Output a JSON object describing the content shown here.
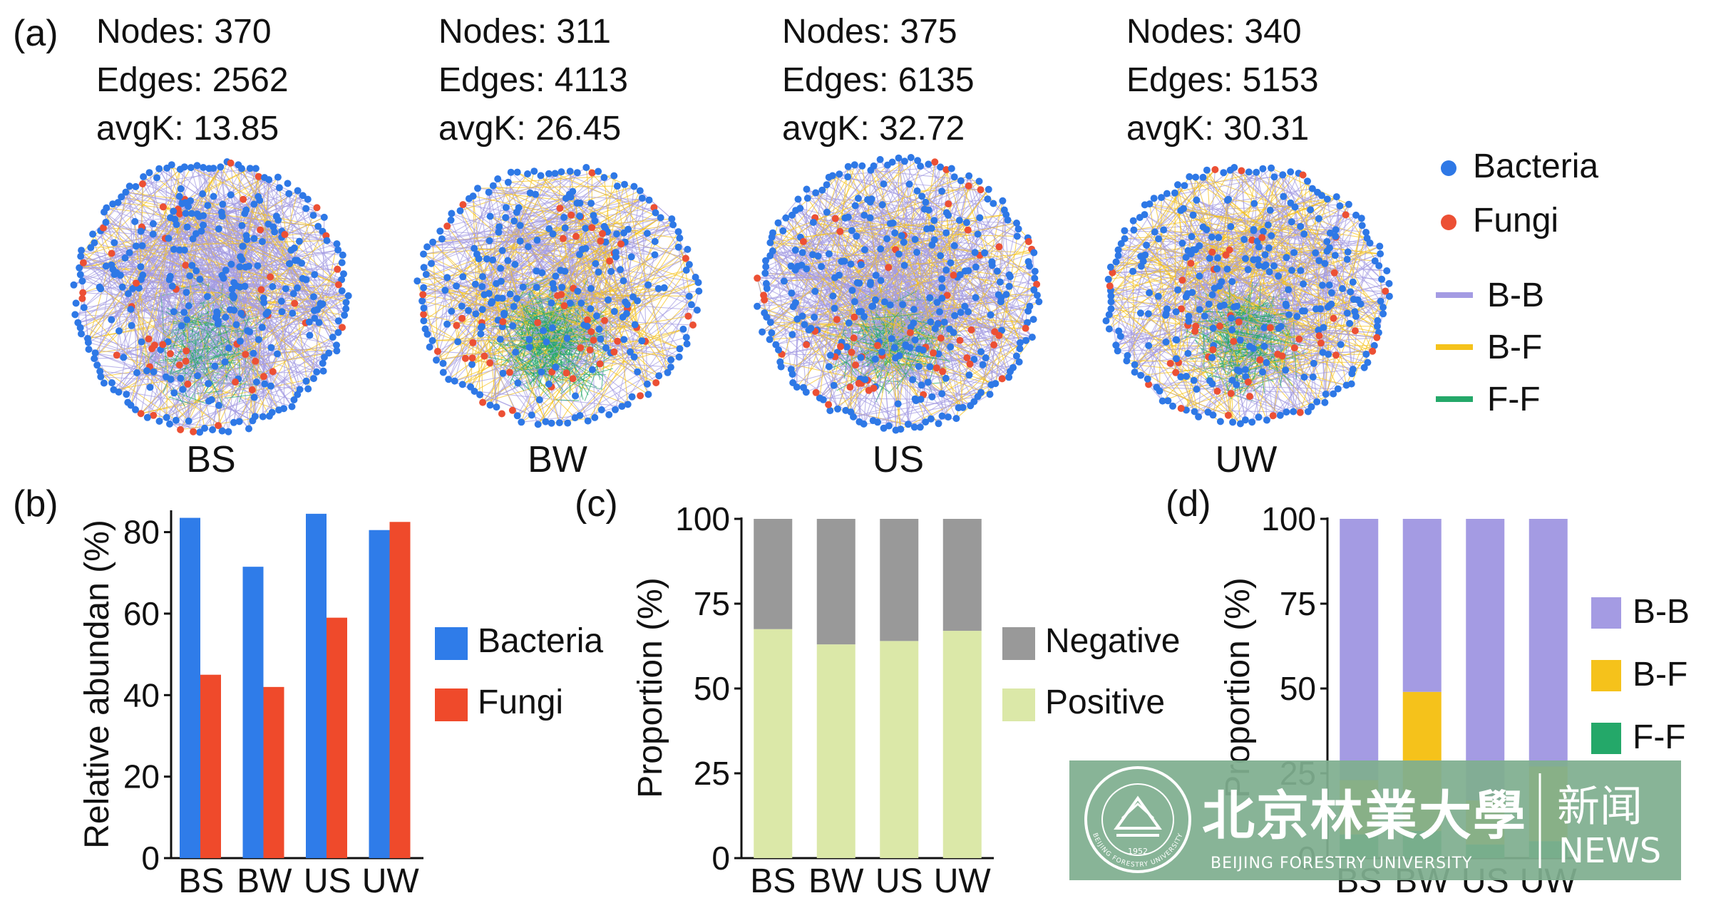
{
  "colors": {
    "bacteria": "#2e78e6",
    "fungi": "#ec5034",
    "bb": "#a49be3",
    "bf": "#f5c21b",
    "ff": "#24a869",
    "negative": "#999999",
    "positive": "#dbe8a8",
    "bar_bacteria": "#2f7ce9",
    "bar_fungi": "#ef4a2b",
    "watermark_bg": "#7fae8f"
  },
  "panel_a": {
    "label": "(a)",
    "networks": [
      {
        "name": "BS",
        "nodes_text": "Nodes: 370",
        "edges_text": "Edges: 2562",
        "avgk_text": "avgK: 13.85"
      },
      {
        "name": "BW",
        "nodes_text": "Nodes: 311",
        "edges_text": "Edges: 4113",
        "avgk_text": "avgK: 26.45"
      },
      {
        "name": "US",
        "nodes_text": "Nodes: 375",
        "edges_text": "Edges: 6135",
        "avgk_text": "avgK: 32.72"
      },
      {
        "name": "UW",
        "nodes_text": "Nodes: 340",
        "edges_text": "Edges: 5153",
        "avgk_text": "avgK: 30.31"
      }
    ],
    "legend": {
      "node_items": [
        {
          "label": "Bacteria",
          "color": "#2e78e6"
        },
        {
          "label": "Fungi",
          "color": "#ec5034"
        }
      ],
      "edge_items": [
        {
          "label": "B-B",
          "color": "#a49be3"
        },
        {
          "label": "B-F",
          "color": "#f5c21b"
        },
        {
          "label": "F-F",
          "color": "#24a869"
        }
      ]
    }
  },
  "chart_data": [
    {
      "panel": "(b)",
      "type": "bar",
      "categories": [
        "BS",
        "BW",
        "US",
        "UW"
      ],
      "series": [
        {
          "name": "Bacteria",
          "values": [
            83.5,
            71.5,
            84.5,
            80.5
          ]
        },
        {
          "name": "Fungi",
          "values": [
            45,
            42,
            59,
            82.5
          ]
        }
      ],
      "ylabel": "Relative abundan (%)",
      "xlabel": "",
      "ylim": [
        0,
        85
      ],
      "yticks": [
        0,
        20,
        40,
        60,
        80
      ],
      "legend": "right"
    },
    {
      "panel": "(c)",
      "type": "bar",
      "stacked": true,
      "categories": [
        "BS",
        "BW",
        "US",
        "UW"
      ],
      "series": [
        {
          "name": "Positive",
          "values": [
            67.5,
            63,
            64,
            67
          ]
        },
        {
          "name": "Negative",
          "values": [
            32.5,
            37,
            36,
            33
          ]
        }
      ],
      "ylabel": "Proportion (%)",
      "xlabel": "",
      "ylim": [
        0,
        100
      ],
      "yticks": [
        0,
        25,
        50,
        75,
        100
      ],
      "legend": "right"
    },
    {
      "panel": "(d)",
      "type": "bar",
      "stacked": true,
      "categories": [
        "BS",
        "BW",
        "US",
        "UW"
      ],
      "series": [
        {
          "name": "F-F",
          "values": [
            7,
            8,
            4,
            5
          ]
        },
        {
          "name": "B-F",
          "values": [
            16,
            41,
            13,
            22
          ]
        },
        {
          "name": "B-B",
          "values": [
            77,
            51,
            83,
            73
          ]
        }
      ],
      "ylabel": "Proportion (%)",
      "xlabel": "",
      "ylim": [
        0,
        100
      ],
      "yticks": [
        0,
        25,
        50,
        75,
        100
      ],
      "legend": "right"
    }
  ],
  "legend_labels": {
    "b": [
      "Bacteria",
      "Fungi"
    ],
    "c": [
      "Negative",
      "Positive"
    ],
    "d": [
      "B-B",
      "B-F",
      "F-F"
    ]
  },
  "watermark": {
    "seal_text": "BEIJING FORESTRY UNIVERSITY",
    "seal_year": "1952",
    "chinese_name": "北京林業大學",
    "english_name": "BEIJING FORESTRY UNIVERSITY",
    "news_cn": "新闻",
    "news_en": "NEWS"
  }
}
